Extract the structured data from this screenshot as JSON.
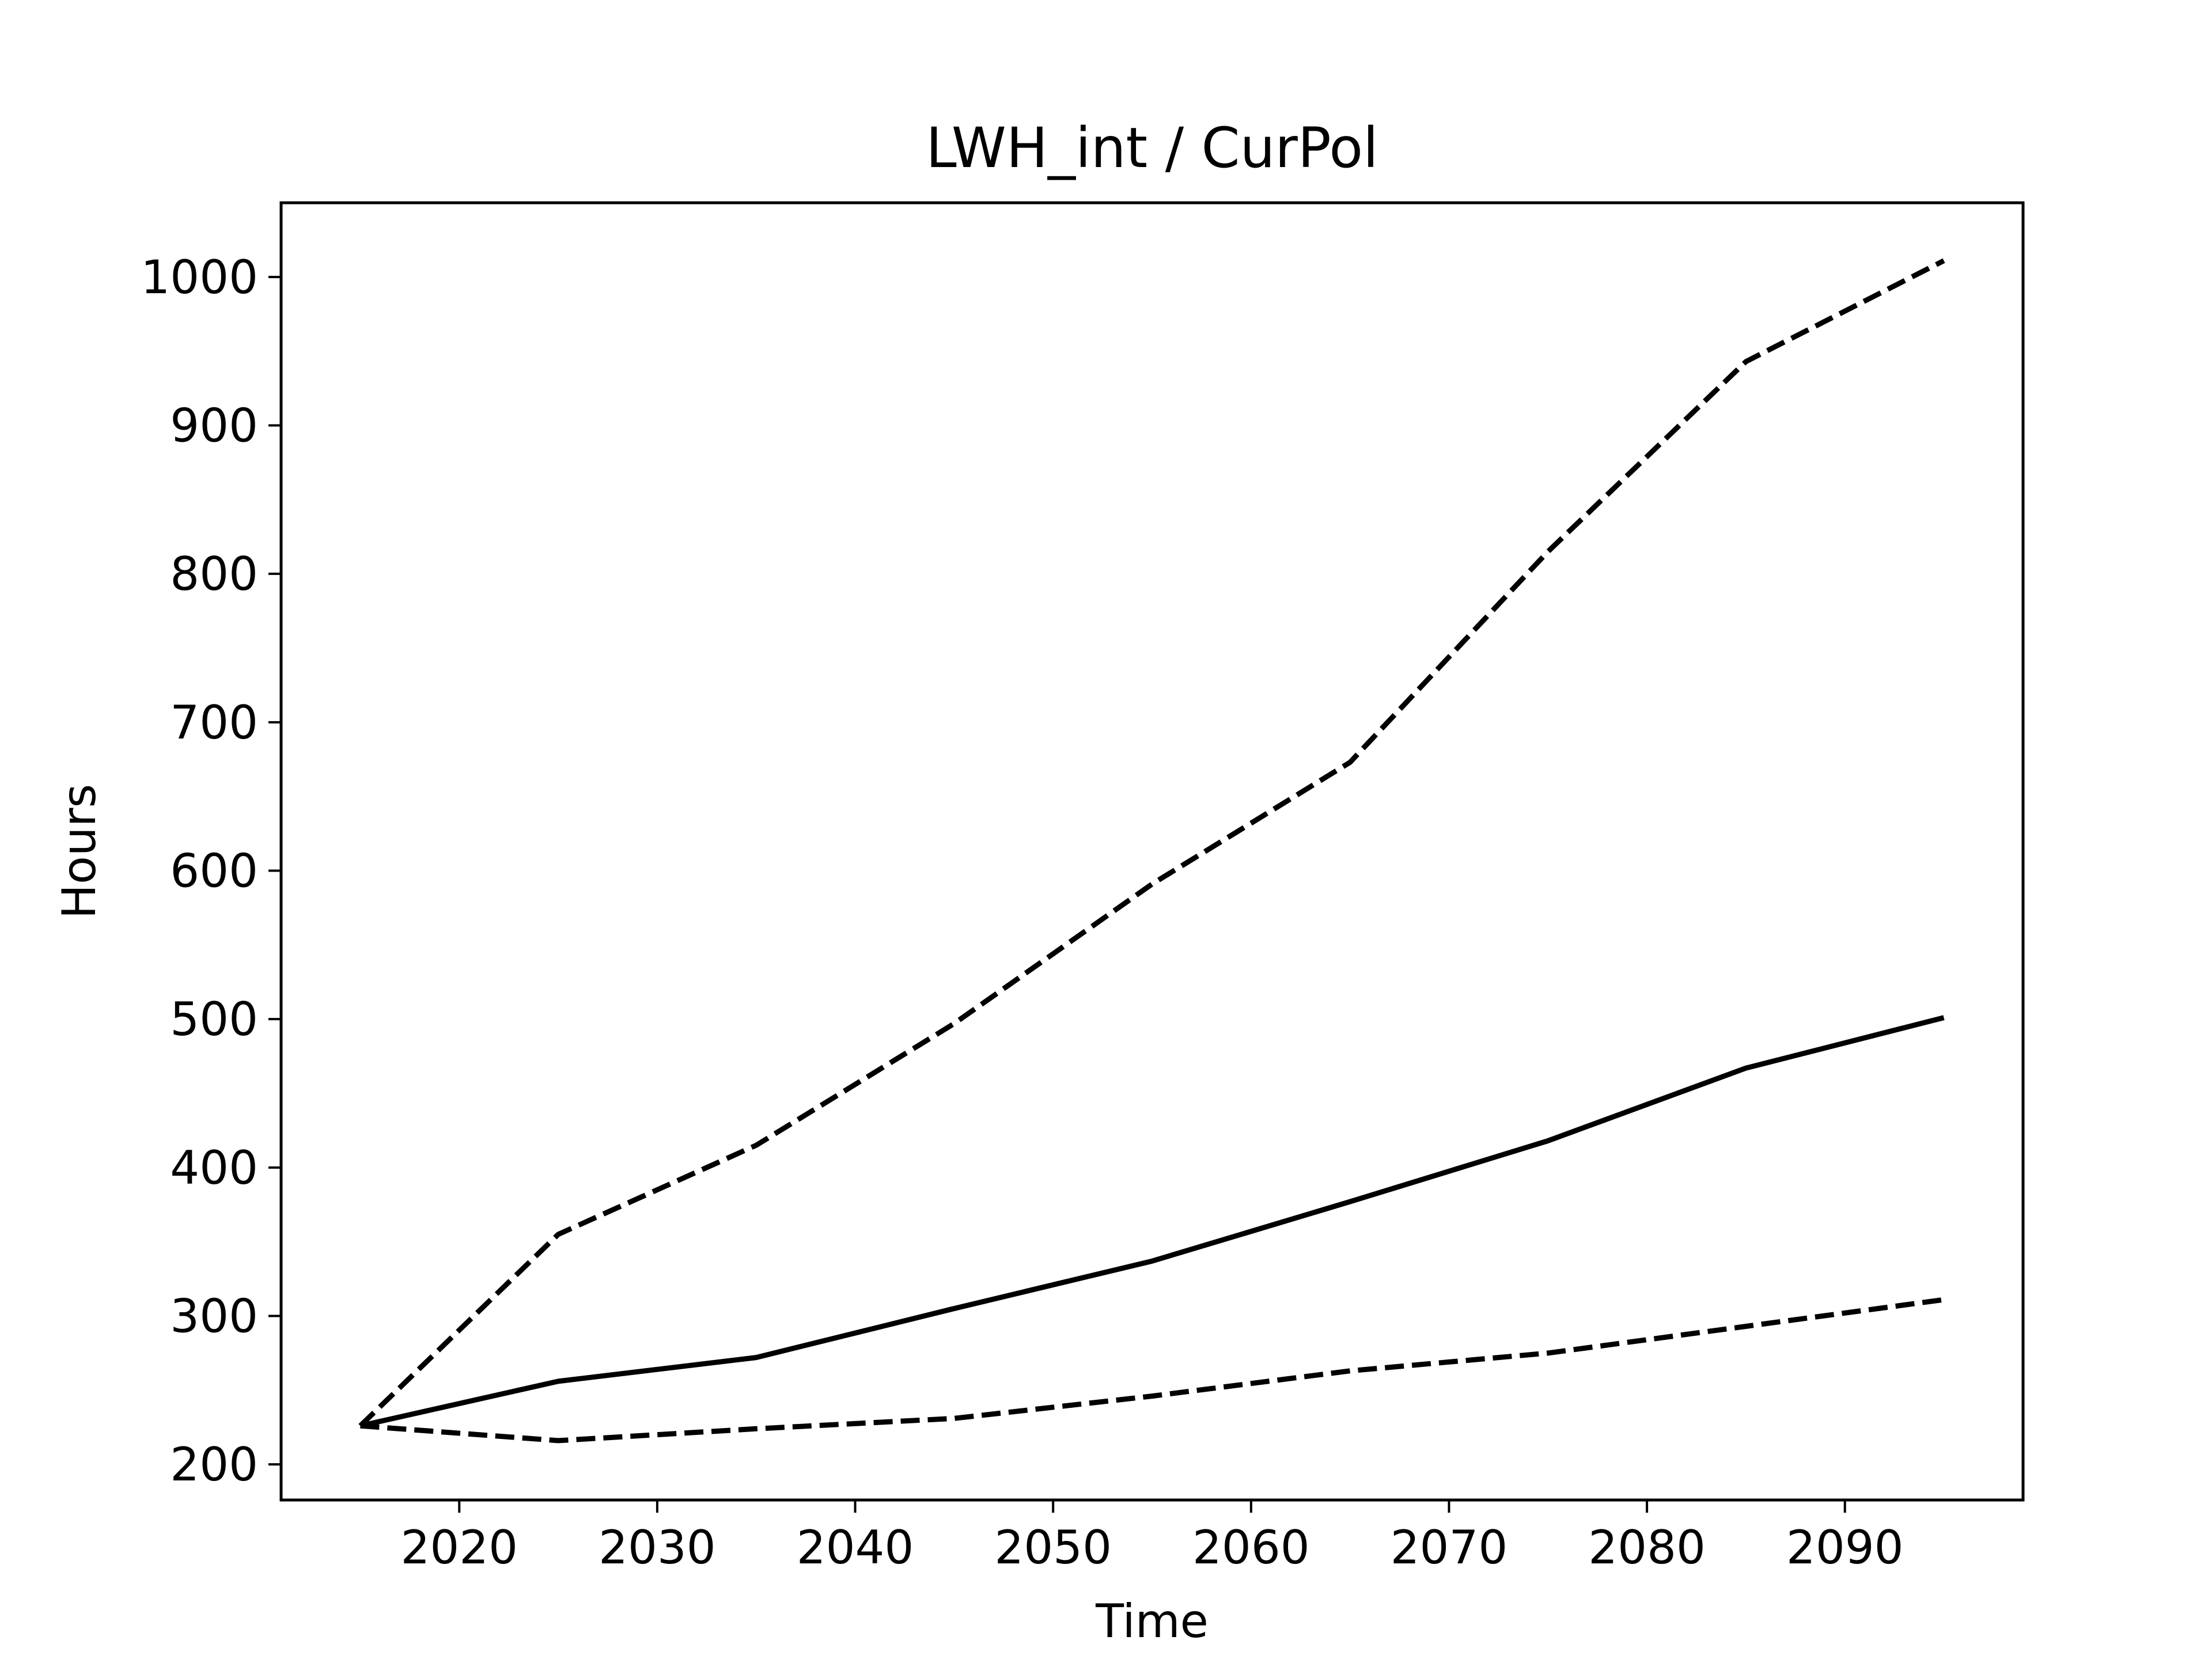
{
  "chart_data": {
    "type": "line",
    "title": "LWH_int / CurPol",
    "xlabel": "Time",
    "ylabel": "Hours",
    "xlim": [
      2011,
      2099
    ],
    "ylim": [
      176,
      1050
    ],
    "xticks": [
      2020,
      2030,
      2040,
      2050,
      2060,
      2070,
      2080,
      2090
    ],
    "yticks": [
      200,
      300,
      400,
      500,
      600,
      700,
      800,
      900,
      1000
    ],
    "grid": false,
    "legend": "none",
    "x": [
      2015,
      2025,
      2035,
      2045,
      2055,
      2065,
      2075,
      2085,
      2095
    ],
    "series": [
      {
        "style": "dashed",
        "color": "#000000",
        "values": [
          226,
          355,
          415,
          497,
          591,
          673,
          815,
          943,
          1011
        ]
      },
      {
        "style": "solid",
        "color": "#000000",
        "values": [
          226,
          256,
          272,
          305,
          337,
          377,
          418,
          467,
          501
        ]
      },
      {
        "style": "dashed",
        "color": "#000000",
        "values": [
          226,
          216,
          224,
          231,
          246,
          263,
          275,
          293,
          311
        ]
      }
    ]
  }
}
